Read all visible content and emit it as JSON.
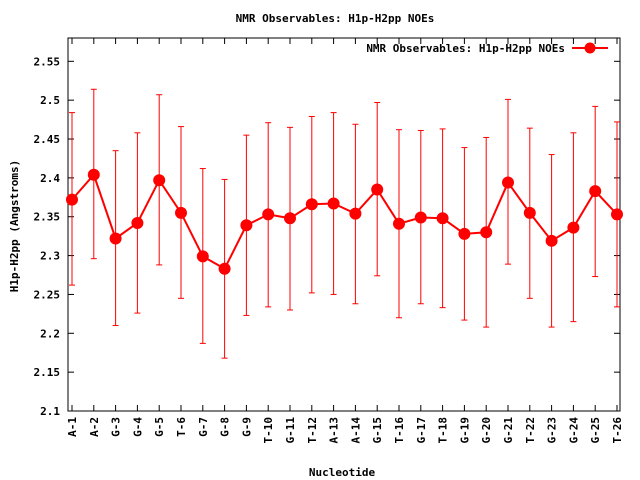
{
  "chart_data": {
    "type": "line",
    "title": "NMR Observables: H1p-H2pp NOEs",
    "xlabel": "Nucleotide",
    "ylabel": "H1p-H2pp (Angstroms)",
    "ylim": [
      2.1,
      2.58
    ],
    "yticks": [
      "2.1",
      "2.15",
      "2.2",
      "2.25",
      "2.3",
      "2.35",
      "2.4",
      "2.45",
      "2.5",
      "2.55"
    ],
    "legend_position": "top-right",
    "grid": false,
    "color": "#ff0000",
    "categories": [
      "A-1",
      "A-2",
      "G-3",
      "G-4",
      "G-5",
      "T-6",
      "G-7",
      "G-8",
      "G-9",
      "T-10",
      "G-11",
      "T-12",
      "A-13",
      "A-14",
      "G-15",
      "T-16",
      "G-17",
      "T-18",
      "G-19",
      "G-20",
      "G-21",
      "T-22",
      "G-23",
      "G-24",
      "G-25",
      "T-26"
    ],
    "series": [
      {
        "name": "NMR Observables: H1p-H2pp NOEs",
        "values": [
          2.372,
          2.404,
          2.322,
          2.342,
          2.397,
          2.355,
          2.299,
          2.283,
          2.339,
          2.353,
          2.348,
          2.366,
          2.367,
          2.354,
          2.385,
          2.341,
          2.349,
          2.348,
          2.328,
          2.33,
          2.394,
          2.355,
          2.319,
          2.336,
          2.383,
          2.353
        ],
        "error_low": [
          2.262,
          2.296,
          2.21,
          2.226,
          2.288,
          2.245,
          2.187,
          2.168,
          2.223,
          2.234,
          2.23,
          2.252,
          2.25,
          2.238,
          2.274,
          2.22,
          2.238,
          2.233,
          2.217,
          2.208,
          2.289,
          2.245,
          2.208,
          2.215,
          2.273,
          2.234
        ],
        "error_high": [
          2.484,
          2.514,
          2.435,
          2.458,
          2.507,
          2.466,
          2.412,
          2.398,
          2.455,
          2.471,
          2.465,
          2.479,
          2.484,
          2.469,
          2.497,
          2.462,
          2.461,
          2.463,
          2.439,
          2.452,
          2.501,
          2.464,
          2.43,
          2.458,
          2.492,
          2.472
        ]
      }
    ]
  }
}
